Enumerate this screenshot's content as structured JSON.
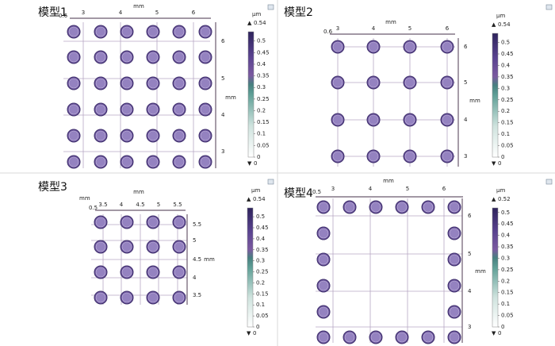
{
  "panels": [
    {
      "title": "模型1",
      "corner_label": 0.6,
      "x_axis": {
        "label": "mm",
        "ticks": [
          3,
          4,
          5,
          6
        ]
      },
      "y_axis": {
        "label": "mm",
        "ticks": [
          6,
          5,
          4,
          3
        ]
      },
      "colorbar": {
        "unit": "μm",
        "max": 0.54,
        "min": 0,
        "ticks": [
          0.5,
          0.45,
          0.4,
          0.35,
          0.3,
          0.25,
          0.2,
          0.15,
          0.1,
          0.05,
          0
        ]
      }
    },
    {
      "title": "模型2",
      "corner_label": 0.6,
      "x_axis": {
        "label": "mm",
        "ticks": [
          3,
          4,
          5,
          6
        ]
      },
      "y_axis": {
        "label": "mm",
        "ticks": [
          6,
          5,
          4,
          3
        ]
      },
      "colorbar": {
        "unit": "μm",
        "max": 0.54,
        "min": 0,
        "ticks": [
          0.5,
          0.45,
          0.4,
          0.35,
          0.3,
          0.25,
          0.2,
          0.15,
          0.1,
          0.05,
          0
        ]
      }
    },
    {
      "title": "模型3",
      "corner_label": 0.5,
      "corner_unit": "mm",
      "x_axis": {
        "label": "mm",
        "ticks": [
          3.5,
          4,
          4.5,
          5,
          5.5
        ]
      },
      "y_axis": {
        "label": "mm",
        "ticks": [
          5.5,
          5,
          4.5,
          4,
          3.5
        ]
      },
      "colorbar": {
        "unit": "μm",
        "max": 0.54,
        "min": 0,
        "ticks": [
          0.5,
          0.45,
          0.4,
          0.35,
          0.3,
          0.25,
          0.2,
          0.15,
          0.1,
          0.05,
          0
        ]
      }
    },
    {
      "title": "模型4",
      "corner_label": 0.5,
      "x_axis": {
        "label": "mm",
        "ticks": [
          3,
          4,
          5,
          6
        ]
      },
      "y_axis": {
        "label": "mm",
        "ticks": [
          6,
          5,
          4,
          3
        ]
      },
      "colorbar": {
        "unit": "μm",
        "max": 0.52,
        "min": 0,
        "ticks": [
          0.5,
          0.45,
          0.4,
          0.35,
          0.3,
          0.25,
          0.2,
          0.15,
          0.1,
          0.05,
          0
        ]
      }
    }
  ]
}
